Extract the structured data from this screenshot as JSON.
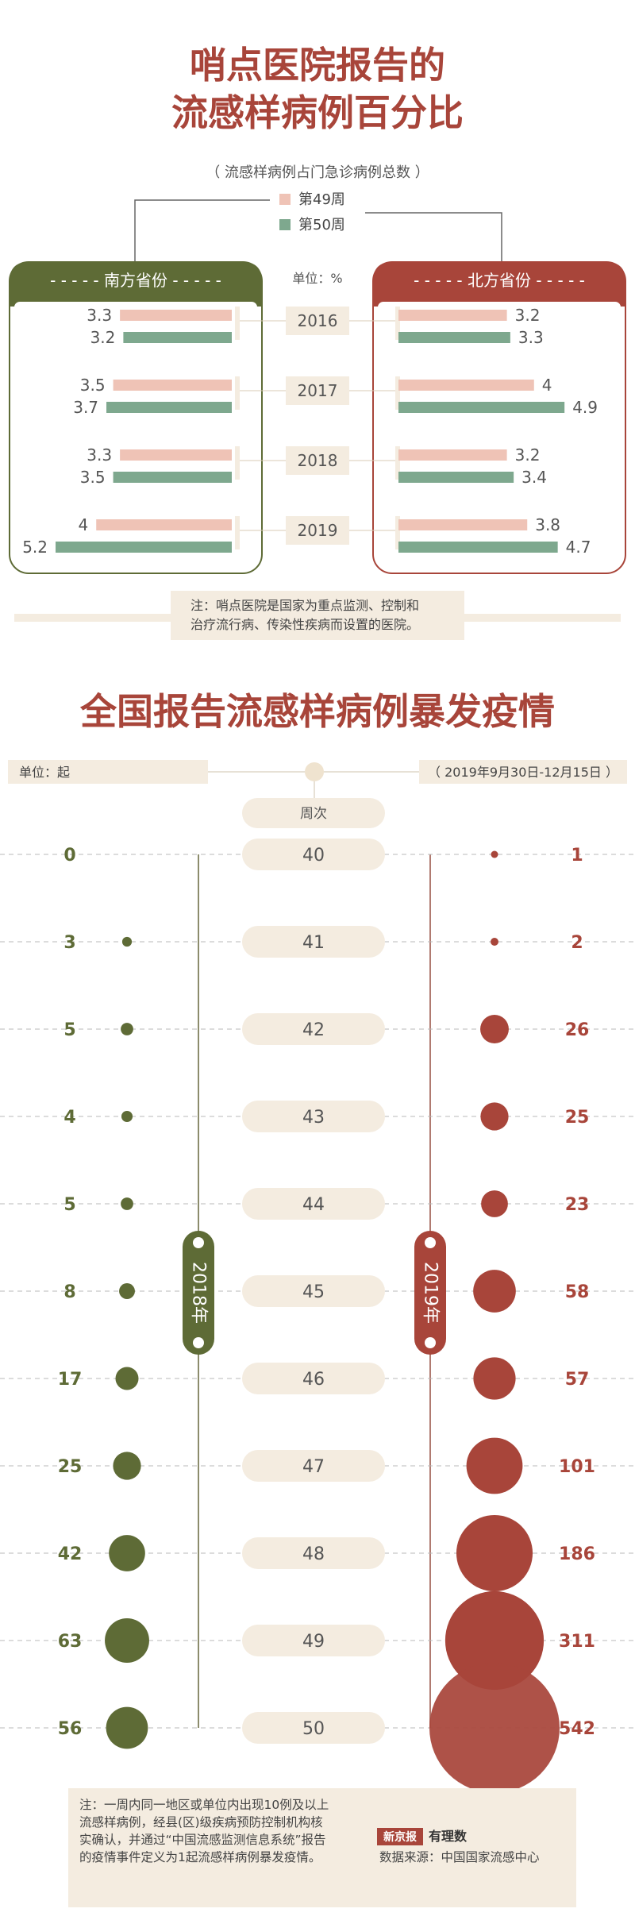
{
  "colors": {
    "red": "#a8453a",
    "green": "#5e6b36",
    "pink": "#efc3b6",
    "teal": "#7ea88e",
    "beige": "#f4ece0",
    "dash": "#b8b8b8"
  },
  "chart_data": [
    {
      "type": "bar",
      "title": "哨点医院报告的流感样病例百分比",
      "subtitle": "（ 流感样病例占门急诊病例总数 ）",
      "unit": "单位：%",
      "legend": [
        "第49周",
        "第50周"
      ],
      "categories": [
        "2016",
        "2017",
        "2018",
        "2019"
      ],
      "groups": [
        {
          "name": "南方省份",
          "series": [
            {
              "name": "第49周",
              "values": [
                3.3,
                3.5,
                3.3,
                4
              ]
            },
            {
              "name": "第50周",
              "values": [
                3.2,
                3.7,
                3.5,
                5.2
              ]
            }
          ]
        },
        {
          "name": "北方省份",
          "series": [
            {
              "name": "第49周",
              "values": [
                3.2,
                4,
                3.2,
                3.8
              ]
            },
            {
              "name": "第50周",
              "values": [
                3.3,
                4.9,
                3.4,
                4.7
              ]
            }
          ]
        }
      ],
      "note": "注：哨点医院是国家为重点监测、控制和治疗流行病、传染性疾病而设置的医院。"
    },
    {
      "type": "scatter",
      "title": "全国报告流感样病例暴发疫情",
      "unit": "单位：起",
      "date_range": "（ 2019年9月30日-12月15日 ）",
      "x_header": "周次",
      "x": [
        40,
        41,
        42,
        43,
        44,
        45,
        46,
        47,
        48,
        49,
        50
      ],
      "series": [
        {
          "name": "2018年",
          "values": [
            0,
            3,
            5,
            4,
            5,
            8,
            17,
            25,
            42,
            63,
            56
          ]
        },
        {
          "name": "2019年",
          "values": [
            1,
            2,
            26,
            25,
            23,
            58,
            57,
            101,
            186,
            311,
            542
          ]
        }
      ],
      "note": "注：一周内同一地区或单位内出现10例及以上流感样病例，经县(区)级疾病预防控制机构核实确认，并通过“中国流感监测信息系统”报告的疫情事件定义为1起流感样病例暴发疫情。",
      "source": "数据来源：中国国家流感中心",
      "brand": "新京报",
      "brand_sub": "有理数"
    }
  ]
}
